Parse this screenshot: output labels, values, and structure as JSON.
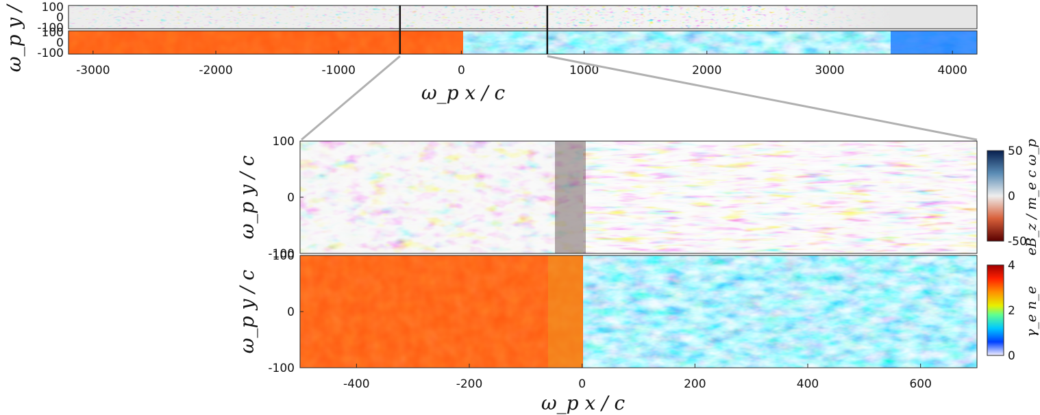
{
  "chart_data": [
    {
      "type": "heatmap",
      "panel": "overview-magnetic-field",
      "xlim": [
        -3200,
        4200
      ],
      "ylim": [
        -100,
        100
      ],
      "xticks": [
        -3000,
        -2000,
        -1000,
        0,
        1000,
        2000,
        3000,
        4000
      ],
      "xtick_labels": [
        "-3000",
        "-2000",
        "-1000",
        "0",
        "1000",
        "2000",
        "3000",
        "4000"
      ],
      "yticks": [
        -100,
        0,
        100
      ],
      "ytick_labels": [
        "-100",
        "0",
        "100"
      ],
      "ylabel": "ω_p y / c",
      "colormap": "red-white-blue",
      "zoom_window_x": [
        -500,
        700
      ]
    },
    {
      "type": "heatmap",
      "panel": "overview-density",
      "xlim": [
        -3200,
        4200
      ],
      "ylim": [
        -100,
        100
      ],
      "xticks": [
        -3000,
        -2000,
        -1000,
        0,
        1000,
        2000,
        3000,
        4000
      ],
      "xtick_labels": [
        "-3000",
        "-2000",
        "-1000",
        "0",
        "1000",
        "2000",
        "3000",
        "4000"
      ],
      "yticks": [
        -100,
        0,
        100
      ],
      "ytick_labels": [
        "-100",
        "0",
        "100"
      ],
      "xlabel": "ω_p x / c",
      "colormap": "jet",
      "zoom_window_x": [
        -500,
        700
      ],
      "shock_position_x": 0
    },
    {
      "type": "heatmap",
      "panel": "zoom-magnetic-field",
      "xlim": [
        -500,
        700
      ],
      "ylim": [
        -100,
        100
      ],
      "yticks": [
        -100,
        0,
        100
      ],
      "ytick_labels": [
        "-100",
        "0",
        "100"
      ],
      "ylabel": "ω_p y / c",
      "colorbar": {
        "label": "e B_z / m_e c ω_p",
        "range": [
          -50,
          50
        ],
        "ticks": [
          -50,
          0,
          50
        ],
        "tick_labels": [
          "-50",
          "0",
          "50"
        ]
      }
    },
    {
      "type": "heatmap",
      "panel": "zoom-density",
      "xlim": [
        -500,
        700
      ],
      "ylim": [
        -100,
        100
      ],
      "xticks": [
        -400,
        -200,
        0,
        200,
        400,
        600
      ],
      "xtick_labels": [
        "-400",
        "-200",
        "0",
        "200",
        "400",
        "600"
      ],
      "yticks": [
        -100,
        0,
        100
      ],
      "ytick_labels": [
        "-100",
        "0",
        "100"
      ],
      "xlabel": "ω_p x / c",
      "ylabel": "ω_p y / c",
      "colorbar": {
        "label": "γ_e n_e",
        "range": [
          0,
          4
        ],
        "ticks": [
          0,
          2,
          4
        ],
        "tick_labels": [
          "0",
          "2",
          "4"
        ]
      },
      "upstream_value": 1,
      "downstream_value": 3.3,
      "shock_position_x": 0
    }
  ],
  "labels": {
    "top_ylabel": "ω_p y / c",
    "top_xlabel": "ω_p x / c",
    "bot_ylabel_upper": "ω_p y / c",
    "bot_ylabel_lower": "ω_p y / c",
    "bot_xlabel": "ω_p x / c",
    "cb1_label": "eB_z / m_e c ω_p",
    "cb2_label": "γ_e n_e"
  },
  "colors": {
    "downstream": "#ff5a10",
    "upstream": "#1a78ff",
    "field_red": "#c8321e",
    "field_blue": "#1a4e8c",
    "field_neutral": "#e6e6e6",
    "connector": "#b0b0b0"
  }
}
